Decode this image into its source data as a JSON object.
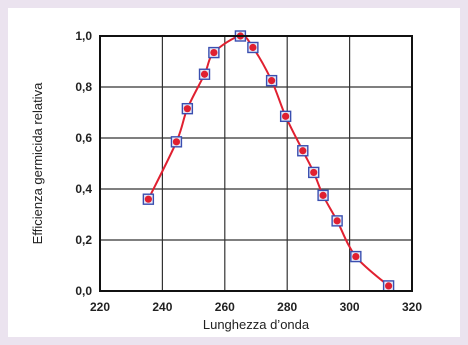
{
  "chart_data": {
    "type": "line",
    "title": "",
    "xlabel": "Lunghezza d’onda",
    "ylabel": "Efficienza germicida relativa",
    "xlim": [
      220,
      320
    ],
    "ylim": [
      0,
      1.0
    ],
    "x_ticks": [
      "220",
      "240",
      "260",
      "280",
      "300",
      "320"
    ],
    "y_ticks": [
      "0,0",
      "0,2",
      "0,4",
      "0,6",
      "0,8",
      "1,0"
    ],
    "grid": true,
    "series": [
      {
        "marker_color": "#e02030",
        "line_color": "#e02030",
        "square_marker_color": "#3a4fb0",
        "x": [
          235.5,
          244.5,
          248,
          253.5,
          256.5,
          265,
          269,
          275,
          279.5,
          285,
          288.5,
          291.5,
          296,
          302,
          312.5
        ],
        "y": [
          0.36,
          0.585,
          0.715,
          0.85,
          0.935,
          1.0,
          0.955,
          0.825,
          0.685,
          0.55,
          0.465,
          0.375,
          0.275,
          0.135,
          0.02
        ]
      }
    ]
  }
}
